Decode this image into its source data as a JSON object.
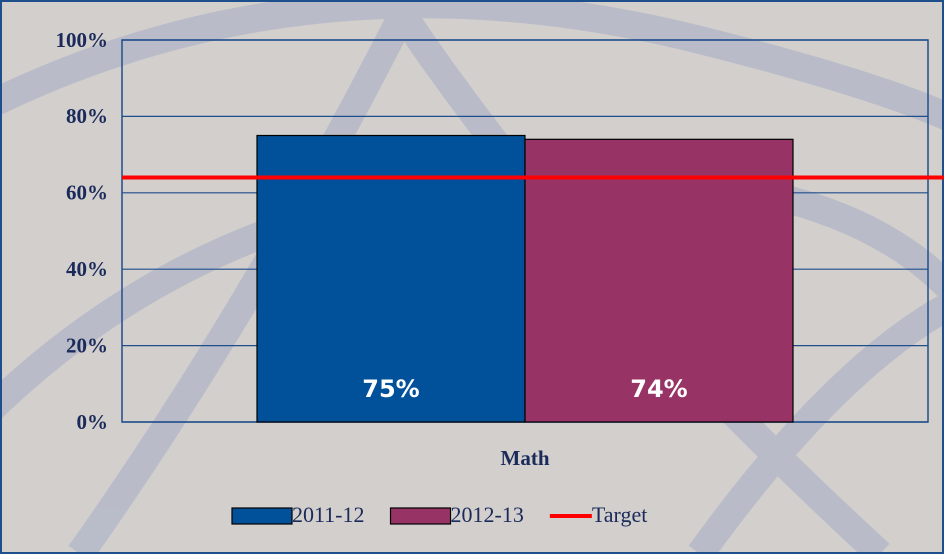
{
  "chart_data": {
    "type": "bar",
    "categories": [
      "Math"
    ],
    "series": [
      {
        "name": "2011-12",
        "color": "#00509a",
        "values": [
          75
        ],
        "value_labels": [
          "75%"
        ]
      },
      {
        "name": "2012-13",
        "color": "#983366",
        "values": [
          74
        ],
        "value_labels": [
          "74%"
        ]
      }
    ],
    "target": {
      "name": "Target",
      "color": "#ff0000",
      "value": 64
    },
    "ylim": [
      0,
      100
    ],
    "yticks": [
      {
        "value": 0,
        "label": "0%"
      },
      {
        "value": 20,
        "label": "20%"
      },
      {
        "value": 40,
        "label": "40%"
      },
      {
        "value": 60,
        "label": "60%"
      },
      {
        "value": 80,
        "label": "80%"
      },
      {
        "value": 100,
        "label": "100%"
      }
    ],
    "grid": true
  }
}
